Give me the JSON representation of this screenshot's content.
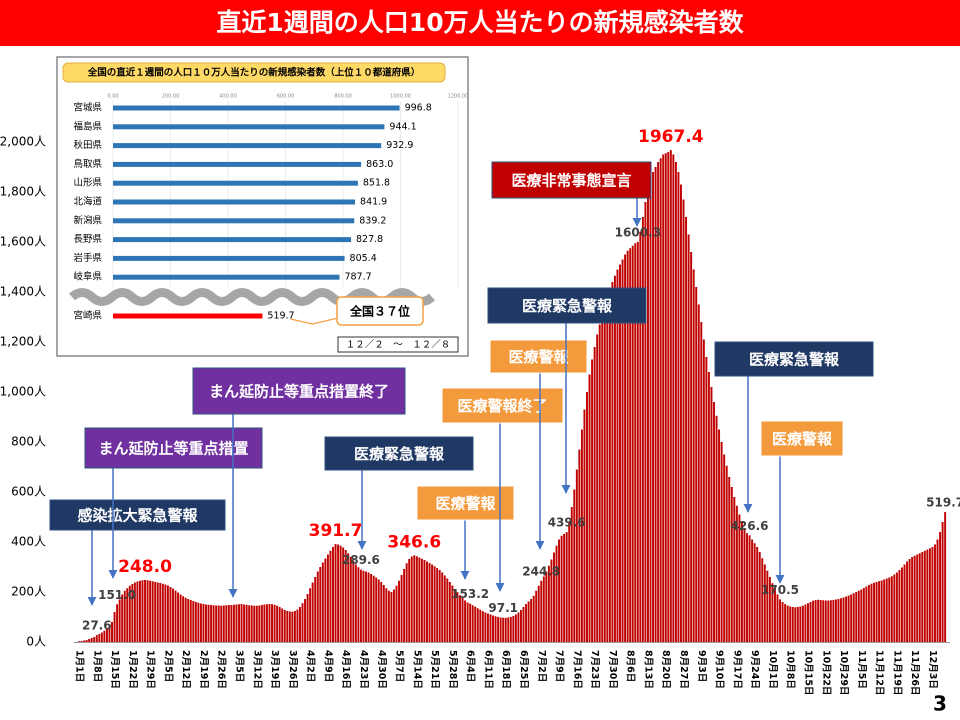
{
  "page_number": "3",
  "chart_data": [
    {
      "type": "bar",
      "title": "直近1週間の人口10万人当たりの新規感染者数",
      "color": "#c00000",
      "ylim": [
        0,
        2000
      ],
      "yticks": [
        {
          "value": 0,
          "label": "0人"
        },
        {
          "value": 200,
          "label": "200人"
        },
        {
          "value": 400,
          "label": "400人"
        },
        {
          "value": 600,
          "label": "600人"
        },
        {
          "value": 800,
          "label": "800人"
        },
        {
          "value": 1000,
          "label": "1,000人"
        },
        {
          "value": 1200,
          "label": "1,200人"
        },
        {
          "value": 1400,
          "label": "1,400人"
        },
        {
          "value": 1600,
          "label": "1,600人"
        },
        {
          "value": 1800,
          "label": "1,800人"
        },
        {
          "value": 2000,
          "label": "2,000人"
        }
      ],
      "categories": [
        "1月1日",
        null,
        null,
        null,
        null,
        null,
        null,
        "1月8日",
        null,
        null,
        null,
        null,
        null,
        null,
        "1月15日",
        null,
        null,
        null,
        null,
        null,
        null,
        "1月22日",
        null,
        null,
        null,
        null,
        null,
        null,
        "1月29日",
        null,
        null,
        null,
        null,
        null,
        null,
        "2月5日",
        null,
        null,
        null,
        null,
        null,
        null,
        "2月12日",
        null,
        null,
        null,
        null,
        null,
        null,
        "2月19日",
        null,
        null,
        null,
        null,
        null,
        null,
        "2月26日",
        null,
        null,
        null,
        null,
        null,
        null,
        "3月5日",
        null,
        null,
        null,
        null,
        null,
        null,
        "3月12日",
        null,
        null,
        null,
        null,
        null,
        null,
        "3月19日",
        null,
        null,
        null,
        null,
        null,
        null,
        "3月26日",
        null,
        null,
        null,
        null,
        null,
        null,
        "4月2日",
        null,
        null,
        null,
        null,
        null,
        null,
        "4月9日",
        null,
        null,
        null,
        null,
        null,
        null,
        "4月16日",
        null,
        null,
        null,
        null,
        null,
        null,
        "4月23日",
        null,
        null,
        null,
        null,
        null,
        null,
        "4月30日",
        null,
        null,
        null,
        null,
        null,
        null,
        "5月7日",
        null,
        null,
        null,
        null,
        null,
        null,
        "5月14日",
        null,
        null,
        null,
        null,
        null,
        null,
        "5月21日",
        null,
        null,
        null,
        null,
        null,
        null,
        "5月28日",
        null,
        null,
        null,
        null,
        null,
        null,
        "6月4日",
        null,
        null,
        null,
        null,
        null,
        null,
        "6月11日",
        null,
        null,
        null,
        null,
        null,
        null,
        "6月18日",
        null,
        null,
        null,
        null,
        null,
        null,
        "6月25日",
        null,
        null,
        null,
        null,
        null,
        null,
        "7月2日",
        null,
        null,
        null,
        null,
        null,
        null,
        "7月9日",
        null,
        null,
        null,
        null,
        null,
        null,
        "7月16日",
        null,
        null,
        null,
        null,
        null,
        null,
        "7月23日",
        null,
        null,
        null,
        null,
        null,
        null,
        "7月30日",
        null,
        null,
        null,
        null,
        null,
        null,
        "8月6日",
        null,
        null,
        null,
        null,
        null,
        null,
        "8月13日",
        null,
        null,
        null,
        null,
        null,
        null,
        "8月20日",
        null,
        null,
        null,
        null,
        null,
        null,
        "8月27日",
        null,
        null,
        null,
        null,
        null,
        null,
        "9月3日",
        null,
        null,
        null,
        null,
        null,
        null,
        "9月10日",
        null,
        null,
        null,
        null,
        null,
        null,
        "9月17日",
        null,
        null,
        null,
        null,
        null,
        null,
        "9月24日",
        null,
        null,
        null,
        null,
        null,
        null,
        "10月1日",
        null,
        null,
        null,
        null,
        null,
        null,
        "10月8日",
        null,
        null,
        null,
        null,
        null,
        null,
        "10月15日",
        null,
        null,
        null,
        null,
        null,
        null,
        "10月22日",
        null,
        null,
        null,
        null,
        null,
        null,
        "10月29日",
        null,
        null,
        null,
        null,
        null,
        null,
        "11月5日",
        null,
        null,
        null,
        null,
        null,
        null,
        "11月12日",
        null,
        null,
        null,
        null,
        null,
        null,
        "11月19日",
        null,
        null,
        null,
        null,
        null,
        null,
        "11月26日",
        null,
        null,
        null,
        null,
        null,
        null,
        "12月3日",
        null,
        null,
        null,
        null,
        null
      ],
      "values": [
        3,
        4,
        6,
        8,
        12,
        16,
        20,
        27.6,
        32,
        38,
        45,
        55,
        65,
        80,
        120,
        151,
        170,
        190,
        205,
        215,
        225,
        232,
        238,
        242,
        245,
        247,
        248,
        247,
        245,
        243,
        240,
        238,
        236,
        233,
        230,
        226,
        220,
        214,
        206,
        198,
        190,
        183,
        177,
        172,
        168,
        164,
        160,
        157,
        154,
        152,
        150,
        149,
        148,
        147,
        146,
        146,
        145,
        146,
        147,
        148,
        148,
        149,
        150,
        151,
        152,
        150,
        149,
        147,
        146,
        145,
        145,
        146,
        148,
        150,
        151,
        152,
        151,
        149,
        145,
        140,
        134,
        128,
        124,
        122,
        121,
        124,
        130,
        140,
        155,
        172,
        192,
        215,
        238,
        260,
        282,
        300,
        318,
        334,
        350,
        365,
        380,
        391.7,
        390,
        385,
        378,
        368,
        355,
        340,
        325,
        310,
        299,
        289.6,
        285,
        282,
        278,
        272,
        265,
        258,
        250,
        240,
        228,
        215,
        205,
        200,
        210,
        225,
        245,
        268,
        292,
        315,
        332,
        342,
        346.6,
        343,
        338,
        333,
        328,
        322,
        316,
        310,
        303,
        296,
        288,
        278,
        266,
        254,
        240,
        226,
        212,
        199,
        187,
        176,
        166,
        158,
        153.2,
        147,
        141,
        135,
        129,
        123,
        118,
        114,
        110,
        106,
        103,
        100,
        98,
        97.1,
        97,
        98,
        100,
        104,
        110,
        118,
        128,
        140,
        152,
        162,
        172,
        185,
        205,
        225,
        244.8,
        262,
        282,
        305,
        330,
        358,
        385,
        410,
        425,
        432,
        439.6,
        480,
        540,
        610,
        690,
        770,
        850,
        930,
        1000,
        1070,
        1130,
        1180,
        1230,
        1270,
        1310,
        1345,
        1380,
        1410,
        1440,
        1465,
        1490,
        1510,
        1530,
        1550,
        1565,
        1575,
        1585,
        1595,
        1600.3,
        1640,
        1700,
        1760,
        1810,
        1850,
        1880,
        1900,
        1920,
        1935,
        1950,
        1955,
        1960,
        1967.4,
        1950,
        1920,
        1880,
        1830,
        1770,
        1700,
        1630,
        1560,
        1490,
        1420,
        1350,
        1280,
        1210,
        1140,
        1080,
        1020,
        960,
        905,
        850,
        800,
        750,
        705,
        660,
        620,
        580,
        545,
        510,
        480,
        455,
        435,
        426.6,
        410,
        395,
        380,
        360,
        335,
        310,
        285,
        260,
        235,
        212,
        190,
        170.5,
        160,
        152,
        146,
        142,
        140,
        139,
        140,
        142,
        145,
        150,
        155,
        160,
        165,
        168,
        169,
        168,
        167,
        166,
        166,
        167,
        168,
        170,
        172,
        175,
        178,
        182,
        186,
        190,
        195,
        200,
        205,
        210,
        216,
        222,
        228,
        233,
        237,
        240,
        243,
        246,
        250,
        254,
        258,
        263,
        270,
        278,
        288,
        298,
        310,
        322,
        332,
        340,
        345,
        350,
        355,
        360,
        365,
        370,
        375,
        380,
        390,
        410,
        440,
        480,
        519.7
      ],
      "value_labels": [
        null,
        null,
        null,
        null,
        null,
        null,
        null,
        "27.6",
        null,
        null,
        null,
        null,
        null,
        null,
        null,
        "151.0",
        null,
        null,
        null,
        null,
        null,
        null,
        null,
        null,
        null,
        null,
        "248.0",
        null,
        null,
        null,
        null,
        null,
        null,
        null,
        null,
        null,
        null,
        null,
        null,
        null,
        null,
        null,
        null,
        null,
        null,
        null,
        null,
        null,
        null,
        null,
        null,
        null,
        null,
        null,
        null,
        null,
        null,
        null,
        null,
        null,
        null,
        null,
        null,
        null,
        null,
        null,
        null,
        null,
        null,
        null,
        null,
        null,
        null,
        null,
        null,
        null,
        null,
        null,
        null,
        null,
        null,
        null,
        null,
        null,
        null,
        null,
        null,
        null,
        null,
        null,
        null,
        null,
        null,
        null,
        null,
        null,
        null,
        null,
        null,
        null,
        null,
        "391.7",
        null,
        null,
        null,
        null,
        null,
        null,
        null,
        null,
        null,
        "289.6",
        null,
        null,
        null,
        null,
        null,
        null,
        null,
        null,
        null,
        null,
        null,
        null,
        null,
        null,
        null,
        null,
        null,
        null,
        null,
        null,
        "346.6",
        null,
        null,
        null,
        null,
        null,
        null,
        null,
        null,
        null,
        null,
        null,
        null,
        null,
        null,
        null,
        null,
        null,
        null,
        null,
        null,
        null,
        "153.2",
        null,
        null,
        null,
        null,
        null,
        null,
        null,
        null,
        null,
        null,
        null,
        null,
        "97.1",
        null,
        null,
        null,
        null,
        null,
        null,
        null,
        null,
        null,
        null,
        null,
        null,
        null,
        null,
        "244.8",
        null,
        null,
        null,
        null,
        null,
        null,
        null,
        null,
        null,
        "439.6",
        null,
        null,
        null,
        null,
        null,
        null,
        null,
        null,
        null,
        null,
        null,
        null,
        null,
        null,
        null,
        null,
        null,
        null,
        null,
        null,
        null,
        null,
        null,
        null,
        null,
        null,
        null,
        "1600.3",
        null,
        null,
        null,
        null,
        null,
        null,
        null,
        null,
        null,
        null,
        null,
        null,
        "1967.4",
        null,
        null,
        null,
        null,
        null,
        null,
        null,
        null,
        null,
        null,
        null,
        null,
        null,
        null,
        null,
        null,
        null,
        null,
        null,
        null,
        null,
        null,
        null,
        null,
        null,
        null,
        null,
        null,
        null,
        null,
        "426.6",
        null,
        null,
        null,
        null,
        null,
        null,
        null,
        null,
        null,
        null,
        null,
        "170.5",
        null,
        null,
        null,
        null,
        null,
        null,
        null,
        null,
        null,
        null,
        null,
        null,
        null,
        null,
        null,
        null,
        null,
        null,
        null,
        null,
        null,
        null,
        null,
        null,
        null,
        null,
        null,
        null,
        null,
        null,
        null,
        null,
        null,
        null,
        null,
        null,
        null,
        null,
        null,
        null,
        null,
        null,
        null,
        null,
        null,
        null,
        null,
        null,
        null,
        null,
        null,
        null,
        null,
        null,
        null,
        null,
        null,
        null,
        null,
        null,
        null,
        null,
        null,
        null,
        "519.7"
      ],
      "annotations": [
        {
          "text": "感染拡大緊急警報",
          "color": "#203864"
        },
        {
          "text": "まん延防止等重点措置",
          "color": "#7030a0"
        },
        {
          "text": "まん延防止等重点措置終了",
          "color": "#7030a0"
        },
        {
          "text": "医療緊急警報",
          "color": "#203864"
        },
        {
          "text": "医療警報",
          "color": "#f39a3c"
        },
        {
          "text": "医療警報終了",
          "color": "#f39a3c"
        },
        {
          "text": "医療警報",
          "color": "#f39a3c"
        },
        {
          "text": "医療緊急警報",
          "color": "#203864"
        },
        {
          "text": "医療非常事態宣言",
          "color": "#c00000"
        },
        {
          "text": "医療緊急警報",
          "color": "#203864"
        },
        {
          "text": "医療警報",
          "color": "#f39a3c"
        }
      ]
    },
    {
      "type": "barh",
      "title": "全国の直近１週間の人口１０万人当たりの新規感染者数（上位１０都道府県）",
      "color": "#2e75b6",
      "grid": true,
      "xlim": [
        0,
        1200
      ],
      "xticks": [
        {
          "value": 0,
          "label": "0.00"
        },
        {
          "value": 200,
          "label": "200.00"
        },
        {
          "value": 400,
          "label": "400.00"
        },
        {
          "value": 600,
          "label": "600.00"
        },
        {
          "value": 800,
          "label": "800.00"
        },
        {
          "value": 1000,
          "label": "1000.00"
        },
        {
          "value": 1200,
          "label": "1200.00"
        }
      ],
      "categories": [
        "宮城県",
        "福島県",
        "秋田県",
        "鳥取県",
        "山形県",
        "北海道",
        "新潟県",
        "長野県",
        "岩手県",
        "岐阜県"
      ],
      "values": [
        996.8,
        944.1,
        932.9,
        863.0,
        851.8,
        841.9,
        839.2,
        827.8,
        805.4,
        787.7
      ],
      "value_labels": [
        "996.8",
        "944.1",
        "932.9",
        "863.0",
        "851.8",
        "841.9",
        "839.2",
        "827.8",
        "805.4",
        "787.7"
      ],
      "highlight": {
        "name": "宮崎県",
        "value": 519.7,
        "color": "#ff0000",
        "rank": "全国３７位"
      },
      "period": "１２／２　～　１２／８"
    }
  ]
}
